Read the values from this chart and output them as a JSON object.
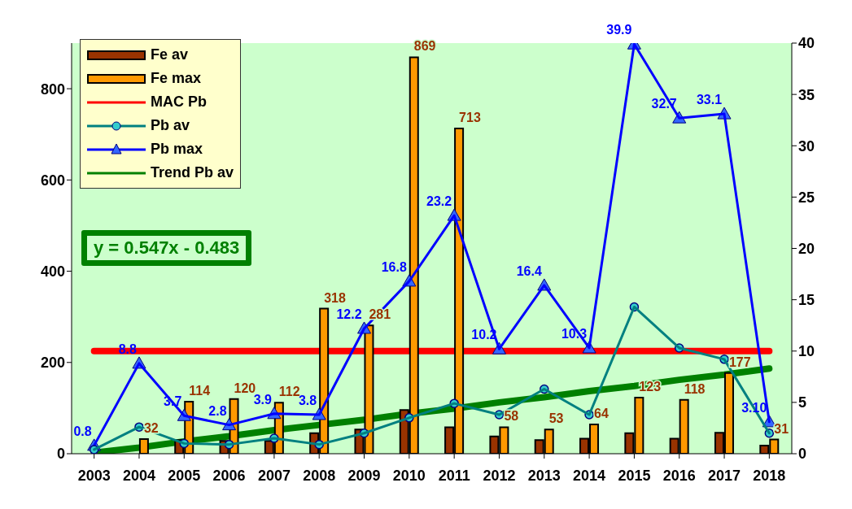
{
  "chart_data": {
    "type": "bar",
    "categories": [
      "2003",
      "2004",
      "2005",
      "2006",
      "2007",
      "2008",
      "2009",
      "2010",
      "2011",
      "2012",
      "2013",
      "2014",
      "2015",
      "2016",
      "2017",
      "2018"
    ],
    "ylim": [
      0,
      900
    ],
    "yticks": [
      0,
      200,
      400,
      600,
      800
    ],
    "y2lim": [
      0,
      40
    ],
    "y2ticks": [
      0,
      5,
      10,
      15,
      20,
      25,
      30,
      35,
      40
    ],
    "grid": false,
    "legend": "top left",
    "annotations": [
      "y = 0.547x - 0.483"
    ],
    "series": [
      {
        "name": "Fe av",
        "color": "#993300",
        "values": [
          null,
          null,
          30,
          28,
          28,
          45,
          53,
          96,
          58,
          38,
          30,
          33,
          45,
          33,
          46,
          18
        ]
      },
      {
        "name": "Fe max",
        "color": "#ff9900",
        "values": [
          null,
          32,
          114,
          120,
          112,
          318,
          281,
          869,
          713,
          58,
          53,
          64,
          123,
          118,
          177,
          31
        ],
        "value_labels": [
          null,
          "32",
          "114",
          "120",
          "112",
          "318",
          "281",
          "869",
          "713",
          "58",
          "53",
          "64",
          "123",
          "118",
          "177",
          "31"
        ]
      },
      {
        "name": "MAC Pb",
        "type": "line",
        "axis": "y2",
        "color": "#ff0000",
        "marker": "none",
        "values": [
          10,
          10,
          10,
          10,
          10,
          10,
          10,
          10,
          10,
          10,
          10,
          10,
          10,
          10,
          10,
          10
        ]
      },
      {
        "name": "Pb av",
        "type": "line",
        "axis": "y2",
        "color": "#008080",
        "marker": "circle",
        "values": [
          0.4,
          2.6,
          1.0,
          0.9,
          1.5,
          0.9,
          2.0,
          3.5,
          4.9,
          3.8,
          6.3,
          3.8,
          14.3,
          10.3,
          9.2,
          2.0
        ]
      },
      {
        "name": "Pb max",
        "type": "line",
        "axis": "y2",
        "color": "#0000ff",
        "marker": "triangle",
        "values": [
          0.8,
          8.8,
          3.7,
          2.8,
          3.9,
          3.8,
          12.2,
          16.8,
          23.2,
          10.2,
          16.4,
          10.3,
          39.9,
          32.7,
          33.1,
          3.1
        ],
        "value_labels": [
          "0.8",
          "8.8",
          "3.7",
          "2.8",
          "3.9",
          "3.8",
          "12.2",
          "16.8",
          "23.2",
          "10.2",
          "16.4",
          "10.3",
          "39.9",
          "32.7",
          "33.1",
          "3.10"
        ]
      },
      {
        "name": "Trend Pb av",
        "type": "line",
        "axis": "y2",
        "color": "#008000",
        "marker": "none",
        "values": [
          0.1,
          0.6,
          1.2,
          1.7,
          2.3,
          2.8,
          3.3,
          3.9,
          4.4,
          5.0,
          5.5,
          6.1,
          6.6,
          7.2,
          7.7,
          8.3
        ]
      }
    ]
  }
}
